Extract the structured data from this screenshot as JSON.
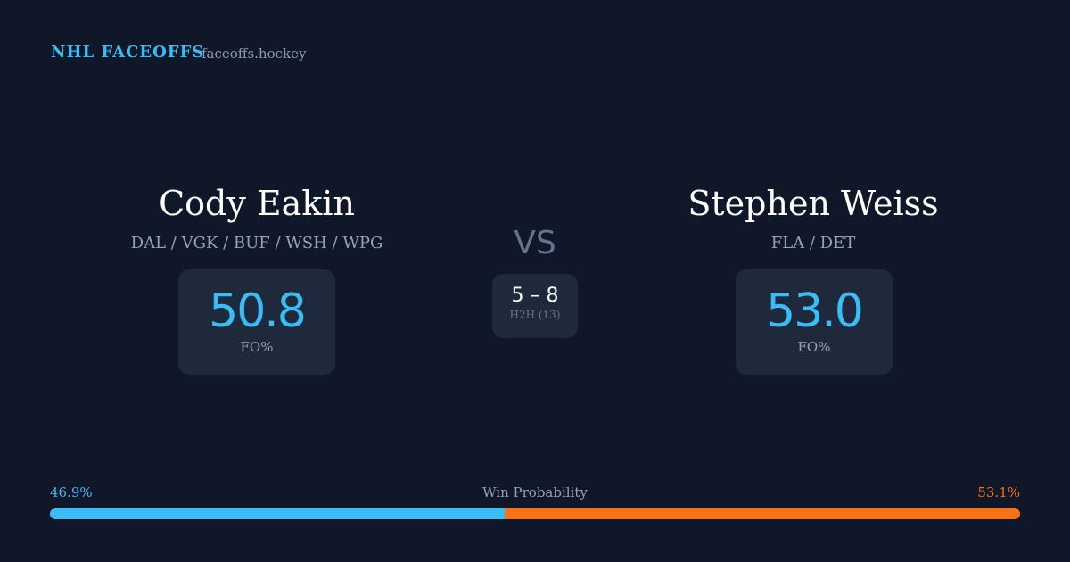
{
  "header": {
    "brand": "NHL FACEOFFS",
    "site": "faceoffs.hockey"
  },
  "players": [
    {
      "name": "Cody Eakin",
      "teams": "DAL / VGK / BUF / WSH / WPG",
      "fo_pct": "50.8",
      "fo_label": "FO%"
    },
    {
      "name": "Stephen Weiss",
      "teams": "FLA / DET",
      "fo_pct": "53.0",
      "fo_label": "FO%"
    }
  ],
  "vs": "VS",
  "h2h": {
    "score": "5 – 8",
    "label": "H2H (13)"
  },
  "win_probability": {
    "label": "Win Probability",
    "left": {
      "value": 46.9,
      "label": "46.9%",
      "color": "#38bdf8"
    },
    "right": {
      "value": 53.1,
      "label": "53.1%",
      "color": "#f97316"
    }
  }
}
